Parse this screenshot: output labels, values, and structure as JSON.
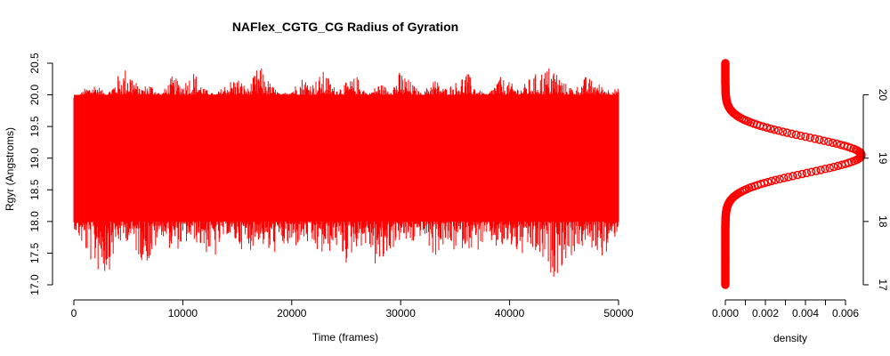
{
  "chart_data": [
    {
      "type": "line",
      "title": "NAFlex_CGTG_CG Radius of Gyration",
      "xlabel": "Time (frames)",
      "ylabel": "Rgyr (Angstroms)",
      "xlim": [
        0,
        50000
      ],
      "ylim": [
        17.0,
        20.5
      ],
      "x_ticks": [
        "0",
        "10000",
        "20000",
        "30000",
        "40000",
        "50000"
      ],
      "y_ticks": [
        "17.0",
        "17.5",
        "18.0",
        "18.5",
        "19.0",
        "19.5",
        "20.0",
        "20.5"
      ],
      "series": [
        {
          "color": "#ff0000",
          "n_frames": 50000,
          "typical_range": [
            18.0,
            20.0
          ],
          "x": [
            0,
            1000,
            2000,
            3000,
            4000,
            5000,
            6000,
            7000,
            8000,
            9000,
            10000,
            11000,
            12000,
            13000,
            14000,
            15000,
            16000,
            17000,
            18000,
            19000,
            20000,
            21000,
            22000,
            23000,
            24000,
            25000,
            26000,
            27000,
            28000,
            29000,
            30000,
            31000,
            32000,
            33000,
            34000,
            35000,
            36000,
            37000,
            38000,
            39000,
            40000,
            41000,
            42000,
            43000,
            44000,
            45000,
            46000,
            47000,
            48000,
            49000,
            50000
          ],
          "ymax": [
            19.9,
            20.1,
            20.2,
            20.0,
            20.3,
            20.5,
            20.1,
            20.2,
            20.0,
            20.3,
            20.2,
            20.4,
            20.1,
            20.0,
            20.2,
            20.3,
            20.1,
            20.5,
            20.2,
            20.0,
            20.1,
            20.3,
            20.2,
            20.4,
            20.1,
            20.2,
            20.3,
            20.0,
            20.2,
            20.1,
            20.4,
            20.2,
            20.0,
            20.3,
            20.1,
            20.2,
            20.4,
            20.1,
            20.0,
            20.3,
            20.2,
            20.1,
            20.3,
            20.4,
            20.5,
            20.2,
            20.1,
            20.3,
            20.2,
            20.1,
            20.1
          ],
          "ymin": [
            17.9,
            17.5,
            17.2,
            17.1,
            17.6,
            17.7,
            17.4,
            17.3,
            17.8,
            17.5,
            17.6,
            17.7,
            17.5,
            17.4,
            17.8,
            17.6,
            17.5,
            17.7,
            17.4,
            17.6,
            17.5,
            17.7,
            17.5,
            17.4,
            17.6,
            17.3,
            17.6,
            17.6,
            17.1,
            17.5,
            17.7,
            17.6,
            17.8,
            17.4,
            17.6,
            17.5,
            17.6,
            17.5,
            17.7,
            17.5,
            17.6,
            17.4,
            17.5,
            17.3,
            17.1,
            17.3,
            17.5,
            17.6,
            17.5,
            17.4,
            17.9
          ]
        }
      ]
    },
    {
      "type": "line",
      "title": "",
      "xlabel": "density",
      "ylabel": "",
      "xlim": [
        0,
        0.0068
      ],
      "ylim": [
        17.0,
        20.5
      ],
      "x_ticks": [
        "0.000",
        "0.002",
        "0.004",
        "0.006"
      ],
      "y_ticks": [
        "17",
        "18",
        "19",
        "20"
      ],
      "y_axis_side": "right",
      "series": [
        {
          "color": "#ff0000",
          "marker": "open-circle",
          "distribution": "normal",
          "mean": 19.05,
          "sd": 0.28,
          "peak_density": 0.0068
        }
      ]
    }
  ]
}
